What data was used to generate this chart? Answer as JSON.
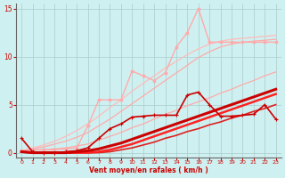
{
  "title": "",
  "xlabel": "Vent moyen/en rafales ( km/h )",
  "x": [
    0,
    1,
    2,
    3,
    4,
    5,
    6,
    7,
    8,
    9,
    10,
    11,
    12,
    13,
    14,
    15,
    16,
    17,
    18,
    19,
    20,
    21,
    22,
    23
  ],
  "lines": [
    {
      "y": [
        0.2,
        0.3,
        0.3,
        0.4,
        0.5,
        0.7,
        0.9,
        1.3,
        1.7,
        2.1,
        2.6,
        3.0,
        3.5,
        4.0,
        4.4,
        4.9,
        5.3,
        5.7,
        6.2,
        6.6,
        7.1,
        7.5,
        8.0,
        8.4
      ],
      "color": "#ffaaaa",
      "lw": 0.9,
      "marker": null
    },
    {
      "y": [
        0.2,
        0.4,
        0.6,
        0.9,
        1.2,
        1.6,
        2.1,
        2.8,
        3.5,
        4.3,
        5.1,
        5.9,
        6.7,
        7.5,
        8.3,
        9.1,
        9.9,
        10.5,
        11.0,
        11.3,
        11.5,
        11.6,
        11.7,
        11.8
      ],
      "color": "#ffaaaa",
      "lw": 0.9,
      "marker": null
    },
    {
      "y": [
        0.2,
        0.5,
        0.8,
        1.2,
        1.7,
        2.3,
        3.0,
        3.8,
        4.7,
        5.5,
        6.4,
        7.2,
        8.0,
        8.8,
        9.5,
        10.2,
        10.8,
        11.3,
        11.6,
        11.8,
        11.9,
        12.0,
        12.1,
        12.2
      ],
      "color": "#ffbbbb",
      "lw": 0.9,
      "marker": null
    },
    {
      "y": [
        0.2,
        0.3,
        0.3,
        0.3,
        0.4,
        0.5,
        2.8,
        5.5,
        5.5,
        5.5,
        8.5,
        8.0,
        7.5,
        8.3,
        11.0,
        12.5,
        15.0,
        11.5,
        11.5,
        11.5,
        11.5,
        11.5,
        11.5,
        11.5
      ],
      "color": "#ffaaaa",
      "lw": 1.0,
      "marker": "o",
      "ms": 2.0
    },
    {
      "y": [
        0.1,
        0,
        0,
        0,
        0,
        0,
        0,
        0,
        0.1,
        0.3,
        0.5,
        0.8,
        1.1,
        1.5,
        1.8,
        2.2,
        2.5,
        2.9,
        3.2,
        3.6,
        3.9,
        4.3,
        4.6,
        5.0
      ],
      "color": "#dd2222",
      "lw": 1.2,
      "marker": null
    },
    {
      "y": [
        0.1,
        0,
        0,
        0,
        0,
        0,
        0,
        0.1,
        0.3,
        0.6,
        0.9,
        1.3,
        1.7,
        2.1,
        2.5,
        2.9,
        3.3,
        3.7,
        4.1,
        4.5,
        4.9,
        5.3,
        5.7,
        6.1
      ],
      "color": "#ff2222",
      "lw": 1.8,
      "marker": null
    },
    {
      "y": [
        0.1,
        0,
        0,
        0,
        0,
        0.1,
        0.2,
        0.4,
        0.7,
        1.0,
        1.4,
        1.8,
        2.2,
        2.6,
        3.0,
        3.4,
        3.8,
        4.2,
        4.6,
        5.0,
        5.4,
        5.8,
        6.2,
        6.6
      ],
      "color": "#cc0000",
      "lw": 2.2,
      "marker": null
    },
    {
      "y": [
        1.5,
        0.1,
        0,
        0,
        0.1,
        0.2,
        0.5,
        1.5,
        2.5,
        3.0,
        3.7,
        3.8,
        3.9,
        3.9,
        3.9,
        6.0,
        6.3,
        5.0,
        3.8,
        3.8,
        3.9,
        4.0,
        5.0,
        3.5
      ],
      "color": "#cc0000",
      "lw": 1.2,
      "marker": "+",
      "ms": 3.5,
      "mew": 0.8
    }
  ],
  "ylim": [
    -0.5,
    15.5
  ],
  "xlim": [
    -0.5,
    23.5
  ],
  "yticks": [
    0,
    5,
    10,
    15
  ],
  "xticks": [
    0,
    1,
    2,
    3,
    4,
    5,
    6,
    7,
    8,
    9,
    10,
    11,
    12,
    13,
    14,
    15,
    16,
    17,
    18,
    19,
    20,
    21,
    22,
    23
  ],
  "bg_color": "#cff0f0",
  "grid_color": "#aacccc",
  "tick_color": "#cc0000",
  "label_color": "#cc0000",
  "spine_color": "#666666"
}
